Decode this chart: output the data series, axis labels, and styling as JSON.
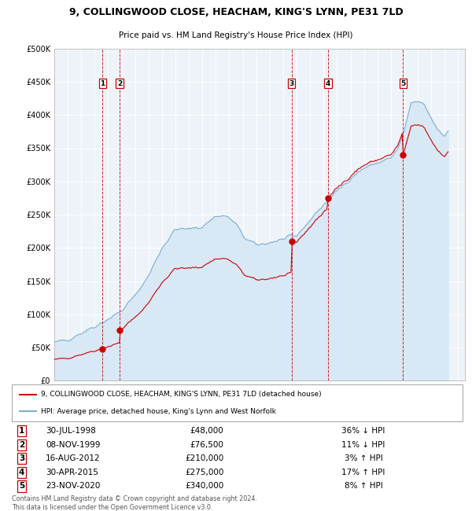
{
  "title": "9, COLLINGWOOD CLOSE, HEACHAM, KING'S LYNN, PE31 7LD",
  "subtitle": "Price paid vs. HM Land Registry's House Price Index (HPI)",
  "legend_line1": "9, COLLINGWOOD CLOSE, HEACHAM, KING'S LYNN, PE31 7LD (detached house)",
  "legend_line2": "HPI: Average price, detached house, King's Lynn and West Norfolk",
  "footer": "Contains HM Land Registry data © Crown copyright and database right 2024.\nThis data is licensed under the Open Government Licence v3.0.",
  "xmin": 1995,
  "xmax": 2025.5,
  "ymin": 0,
  "ymax": 500000,
  "yticks": [
    0,
    50000,
    100000,
    150000,
    200000,
    250000,
    300000,
    350000,
    400000,
    450000,
    500000
  ],
  "ytick_labels": [
    "£0",
    "£50K",
    "£100K",
    "£150K",
    "£200K",
    "£250K",
    "£300K",
    "£350K",
    "£400K",
    "£450K",
    "£500K"
  ],
  "sale_color": "#cc0000",
  "hpi_color": "#7bafd4",
  "hpi_fill_color": "#d8e8f5",
  "plot_bg_color": "#eef3fa",
  "grid_color": "#cccccc",
  "sale_points": [
    {
      "year": 1998.58,
      "price": 48000,
      "label": "1"
    },
    {
      "year": 1999.86,
      "price": 76500,
      "label": "2"
    },
    {
      "year": 2012.62,
      "price": 210000,
      "label": "3"
    },
    {
      "year": 2015.33,
      "price": 275000,
      "label": "4"
    },
    {
      "year": 2020.9,
      "price": 340000,
      "label": "5"
    }
  ],
  "sale_vlines": [
    1998.58,
    1999.86,
    2012.62,
    2015.33,
    2020.9
  ],
  "table_rows": [
    {
      "num": "1",
      "date": "30-JUL-1998",
      "price": "£48,000",
      "hpi": "36% ↓ HPI"
    },
    {
      "num": "2",
      "date": "08-NOV-1999",
      "price": "£76,500",
      "hpi": "11% ↓ HPI"
    },
    {
      "num": "3",
      "date": "16-AUG-2012",
      "price": "£210,000",
      "hpi": "3% ↑ HPI"
    },
    {
      "num": "4",
      "date": "30-APR-2015",
      "price": "£275,000",
      "hpi": "17% ↑ HPI"
    },
    {
      "num": "5",
      "date": "23-NOV-2020",
      "price": "£340,000",
      "hpi": "8% ↑ HPI"
    }
  ]
}
